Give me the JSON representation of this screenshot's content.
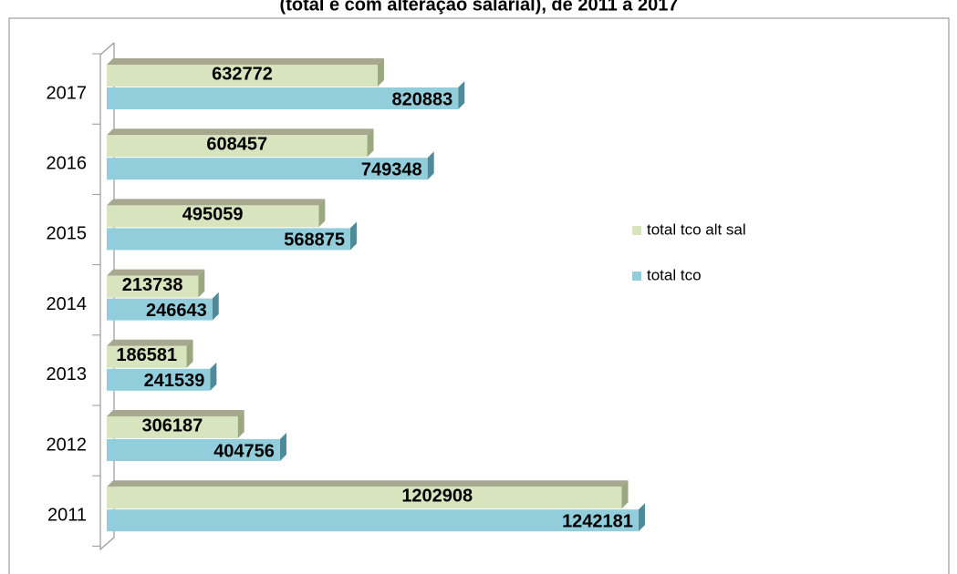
{
  "chart_data": {
    "type": "bar",
    "title": "(total e com alteração salarial), de 2011 a 2017",
    "categories": [
      "2011",
      "2012",
      "2013",
      "2014",
      "2015",
      "2016",
      "2017"
    ],
    "series": [
      {
        "name": "total tco alt sal",
        "color": "#d7e4bd",
        "values": [
          1202908,
          306187,
          186581,
          213738,
          495059,
          608457,
          632772
        ]
      },
      {
        "name": "total tco",
        "color": "#92cddc",
        "values": [
          1242181,
          404756,
          241539,
          246643,
          568875,
          749348,
          820883
        ]
      }
    ],
    "xlim": [
      0,
      1400000
    ],
    "legend": "right"
  }
}
